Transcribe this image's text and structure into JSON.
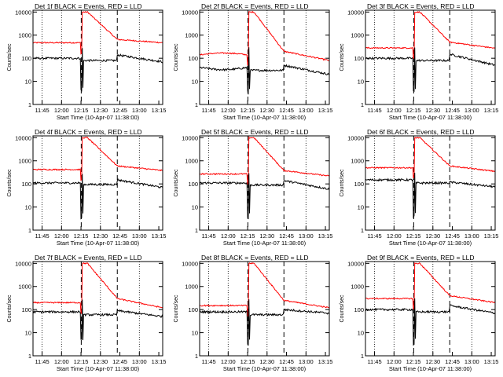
{
  "chart_data": {
    "type": "line",
    "ylabel": "Counts/sec",
    "xlabel": "Start Time (10-Apr-07 11:38:00)",
    "x_ticks": [
      "11:45",
      "12:00",
      "12:15",
      "12:30",
      "12:45",
      "13:00",
      "13:15"
    ],
    "x_range_minutes_after_start": [
      0,
      100
    ],
    "x_tick_minutes_after_start": [
      7,
      22,
      37,
      52,
      67,
      82,
      97
    ],
    "y_ticks": [
      "1",
      "10",
      "100",
      "1000",
      "10000"
    ],
    "ylim": [
      1,
      12000
    ],
    "y_scale": "log",
    "grid": "dotted vertical lines at 11:45, 12:00, 12:30, 13:00",
    "dashed_vertical_lines": [
      "12:15 (attenuator in)",
      "12:43 (attenuator out)"
    ],
    "series_colors": {
      "events": "#000000",
      "lld": "#ff0000"
    },
    "panels": [
      {
        "title": "Det 1f BLACK = Events, RED = LLD",
        "events": {
          "base": 100,
          "drop": 80,
          "recover": 140,
          "end": 70,
          "dip": 0
        },
        "lld": {
          "base": 470,
          "peak": 10000,
          "decay_end": 650,
          "end": 470,
          "hump": 0
        }
      },
      {
        "title": "Det 2f BLACK = Events, RED = LLD",
        "events": {
          "base": 40,
          "drop": 30,
          "recover": 50,
          "end": 20,
          "dip": 20
        },
        "lld": {
          "base": 140,
          "peak": 10000,
          "decay_end": 200,
          "end": 80,
          "hump": 20
        }
      },
      {
        "title": "Det 3f BLACK = Events, RED = LLD",
        "events": {
          "base": 100,
          "drop": 80,
          "recover": 150,
          "end": 50,
          "dip": 0
        },
        "lld": {
          "base": 280,
          "peak": 10000,
          "decay_end": 500,
          "end": 270,
          "hump": 0
        }
      },
      {
        "title": "Det 4f BLACK = Events, RED = LLD",
        "events": {
          "base": 110,
          "drop": 95,
          "recover": 150,
          "end": 70,
          "dip": 0
        },
        "lld": {
          "base": 420,
          "peak": 10000,
          "decay_end": 600,
          "end": 380,
          "hump": 0
        }
      },
      {
        "title": "Det 5f BLACK = Events, RED = LLD",
        "events": {
          "base": 110,
          "drop": 90,
          "recover": 140,
          "end": 60,
          "dip": 0
        },
        "lld": {
          "base": 270,
          "peak": 10000,
          "decay_end": 380,
          "end": 220,
          "hump": 0
        }
      },
      {
        "title": "Det 6f BLACK = Events, RED = LLD",
        "events": {
          "base": 150,
          "drop": 110,
          "recover": 120,
          "end": 75,
          "dip": 0
        },
        "lld": {
          "base": 500,
          "peak": 10000,
          "decay_end": 600,
          "end": 350,
          "hump": 0
        }
      },
      {
        "title": "Det 7f BLACK = Events, RED = LLD",
        "events": {
          "base": 80,
          "drop": 60,
          "recover": 90,
          "end": 50,
          "dip": 0
        },
        "lld": {
          "base": 200,
          "peak": 10000,
          "decay_end": 300,
          "end": 120,
          "hump": 0
        }
      },
      {
        "title": "Det 8f BLACK = Events, RED = LLD",
        "events": {
          "base": 80,
          "drop": 60,
          "recover": 100,
          "end": 70,
          "dip": 0
        },
        "lld": {
          "base": 150,
          "peak": 10000,
          "decay_end": 250,
          "end": 120,
          "hump": 0
        }
      },
      {
        "title": "Det 9f BLACK = Events, RED = LLD",
        "events": {
          "base": 100,
          "drop": 80,
          "recover": 150,
          "end": 70,
          "dip": 0
        },
        "lld": {
          "base": 300,
          "peak": 10000,
          "decay_end": 400,
          "end": 200,
          "hump": 0
        }
      }
    ]
  }
}
